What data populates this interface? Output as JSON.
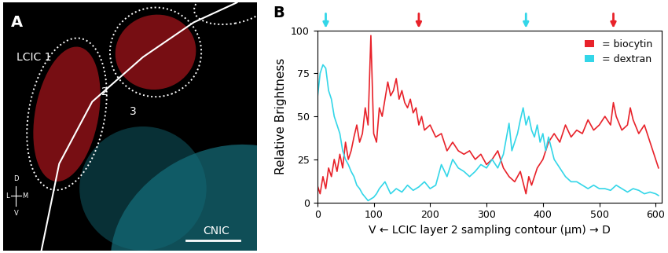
{
  "panel_a": {
    "label": "A",
    "texts": [
      "LCIC 1",
      "2",
      "3",
      "CNIC"
    ],
    "orientation": [
      "D",
      "L",
      "M",
      "V"
    ]
  },
  "chart_data": {
    "type": "line",
    "title": "B",
    "x_label": "V ← LCIC layer 2 sampling contour (μm) → D",
    "y_label": "Relative Brightness",
    "xlim": [
      0,
      610
    ],
    "xticks": [
      0,
      100,
      200,
      300,
      400,
      500,
      600
    ],
    "ylim": [
      0,
      100
    ],
    "yticks": [
      0,
      25,
      50,
      75,
      100
    ],
    "legend": "upper right",
    "arrows": [
      {
        "x": 15,
        "color": "#33d6e8"
      },
      {
        "x": 180,
        "color": "#e8222a"
      },
      {
        "x": 370,
        "color": "#33d6e8"
      },
      {
        "x": 525,
        "color": "#e8222a"
      }
    ],
    "series": [
      {
        "name": "= biocytin",
        "color": "#e8222a",
        "x": [
          0,
          5,
          10,
          15,
          20,
          25,
          30,
          35,
          40,
          45,
          50,
          55,
          60,
          65,
          70,
          75,
          80,
          85,
          90,
          95,
          100,
          105,
          110,
          115,
          120,
          125,
          130,
          135,
          140,
          145,
          150,
          155,
          160,
          165,
          170,
          175,
          180,
          185,
          190,
          200,
          210,
          220,
          230,
          240,
          250,
          260,
          270,
          280,
          290,
          300,
          310,
          320,
          330,
          340,
          350,
          360,
          370,
          375,
          380,
          390,
          400,
          410,
          420,
          430,
          440,
          450,
          460,
          470,
          480,
          490,
          500,
          510,
          520,
          525,
          530,
          540,
          550,
          555,
          560,
          570,
          580,
          590,
          600,
          605
        ],
        "values": [
          10,
          5,
          15,
          8,
          20,
          15,
          25,
          18,
          28,
          20,
          35,
          25,
          30,
          38,
          45,
          35,
          40,
          55,
          45,
          97,
          40,
          35,
          55,
          50,
          60,
          70,
          62,
          65,
          72,
          60,
          65,
          58,
          55,
          60,
          52,
          55,
          45,
          50,
          42,
          45,
          38,
          40,
          30,
          35,
          30,
          28,
          30,
          25,
          28,
          22,
          25,
          30,
          20,
          15,
          12,
          18,
          5,
          15,
          10,
          20,
          25,
          35,
          40,
          35,
          45,
          38,
          42,
          40,
          48,
          42,
          45,
          50,
          45,
          58,
          50,
          42,
          45,
          55,
          48,
          40,
          45,
          35,
          25,
          20
        ]
      },
      {
        "name": "= dextran",
        "color": "#33d6e8",
        "x": [
          0,
          5,
          10,
          15,
          20,
          25,
          30,
          35,
          40,
          45,
          50,
          55,
          60,
          65,
          70,
          75,
          80,
          85,
          90,
          95,
          100,
          105,
          110,
          115,
          120,
          130,
          140,
          150,
          160,
          170,
          180,
          190,
          200,
          210,
          220,
          230,
          240,
          250,
          260,
          270,
          280,
          290,
          300,
          310,
          320,
          330,
          340,
          345,
          350,
          355,
          360,
          365,
          370,
          375,
          380,
          385,
          390,
          395,
          400,
          405,
          410,
          420,
          430,
          440,
          450,
          460,
          470,
          480,
          490,
          500,
          510,
          520,
          530,
          540,
          550,
          560,
          570,
          580,
          590,
          600,
          605
        ],
        "values": [
          60,
          75,
          80,
          78,
          65,
          60,
          50,
          45,
          40,
          30,
          25,
          22,
          18,
          15,
          10,
          8,
          5,
          3,
          1,
          2,
          3,
          5,
          8,
          10,
          12,
          5,
          8,
          6,
          10,
          7,
          9,
          12,
          8,
          10,
          22,
          15,
          25,
          20,
          18,
          15,
          18,
          22,
          20,
          25,
          20,
          28,
          46,
          30,
          35,
          40,
          48,
          55,
          45,
          50,
          42,
          38,
          45,
          35,
          40,
          30,
          38,
          25,
          20,
          15,
          12,
          12,
          10,
          8,
          10,
          8,
          8,
          7,
          10,
          8,
          6,
          8,
          7,
          5,
          6,
          5,
          4
        ]
      }
    ]
  }
}
